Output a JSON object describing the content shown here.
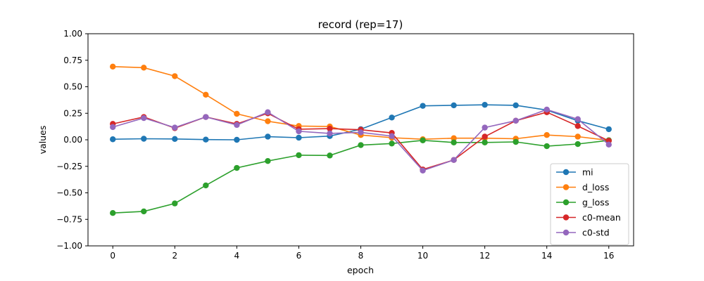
{
  "chart_data": {
    "type": "line",
    "title": "record (rep=17)",
    "xlabel": "epoch",
    "ylabel": "values",
    "xlim": [
      -0.8,
      16.8
    ],
    "ylim": [
      -1.0,
      1.0
    ],
    "x_ticks": [
      0,
      2,
      4,
      6,
      8,
      10,
      12,
      14,
      16
    ],
    "x_tick_labels": [
      "0",
      "2",
      "4",
      "6",
      "8",
      "10",
      "12",
      "14",
      "16"
    ],
    "y_ticks": [
      -1.0,
      -0.75,
      -0.5,
      -0.25,
      0.0,
      0.25,
      0.5,
      0.75,
      1.0
    ],
    "y_tick_labels": [
      "−1.00",
      "−0.75",
      "−0.50",
      "−0.25",
      "0.00",
      "0.25",
      "0.50",
      "0.75",
      "1.00"
    ],
    "grid": false,
    "legend_position": "lower-right",
    "x": [
      0,
      1,
      2,
      3,
      4,
      5,
      6,
      7,
      8,
      9,
      10,
      11,
      12,
      13,
      14,
      15,
      16
    ],
    "series": [
      {
        "name": "mi",
        "color": "#1f77b4",
        "values": [
          0.005,
          0.01,
          0.008,
          0.002,
          0.0,
          0.03,
          0.02,
          0.035,
          0.1,
          0.21,
          0.32,
          0.325,
          0.33,
          0.325,
          0.28,
          0.18,
          0.1
        ]
      },
      {
        "name": "d_loss",
        "color": "#ff7f0e",
        "values": [
          0.69,
          0.68,
          0.6,
          0.425,
          0.245,
          0.175,
          0.13,
          0.125,
          0.045,
          0.02,
          0.005,
          0.015,
          0.015,
          0.01,
          0.045,
          0.03,
          -0.005
        ]
      },
      {
        "name": "g_loss",
        "color": "#2ca02c",
        "values": [
          -0.69,
          -0.675,
          -0.6,
          -0.43,
          -0.265,
          -0.2,
          -0.145,
          -0.148,
          -0.05,
          -0.035,
          -0.005,
          -0.025,
          -0.025,
          -0.02,
          -0.06,
          -0.04,
          -0.005
        ]
      },
      {
        "name": "c0-mean",
        "color": "#d62728",
        "values": [
          0.15,
          0.215,
          0.11,
          0.215,
          0.15,
          0.25,
          0.1,
          0.105,
          0.095,
          0.065,
          -0.28,
          -0.19,
          0.03,
          0.18,
          0.26,
          0.13,
          -0.01
        ]
      },
      {
        "name": "c0-std",
        "color": "#9467bd",
        "values": [
          0.12,
          0.205,
          0.115,
          0.215,
          0.14,
          0.26,
          0.08,
          0.06,
          0.07,
          0.035,
          -0.29,
          -0.19,
          0.115,
          0.18,
          0.285,
          0.195,
          -0.045
        ]
      }
    ]
  }
}
